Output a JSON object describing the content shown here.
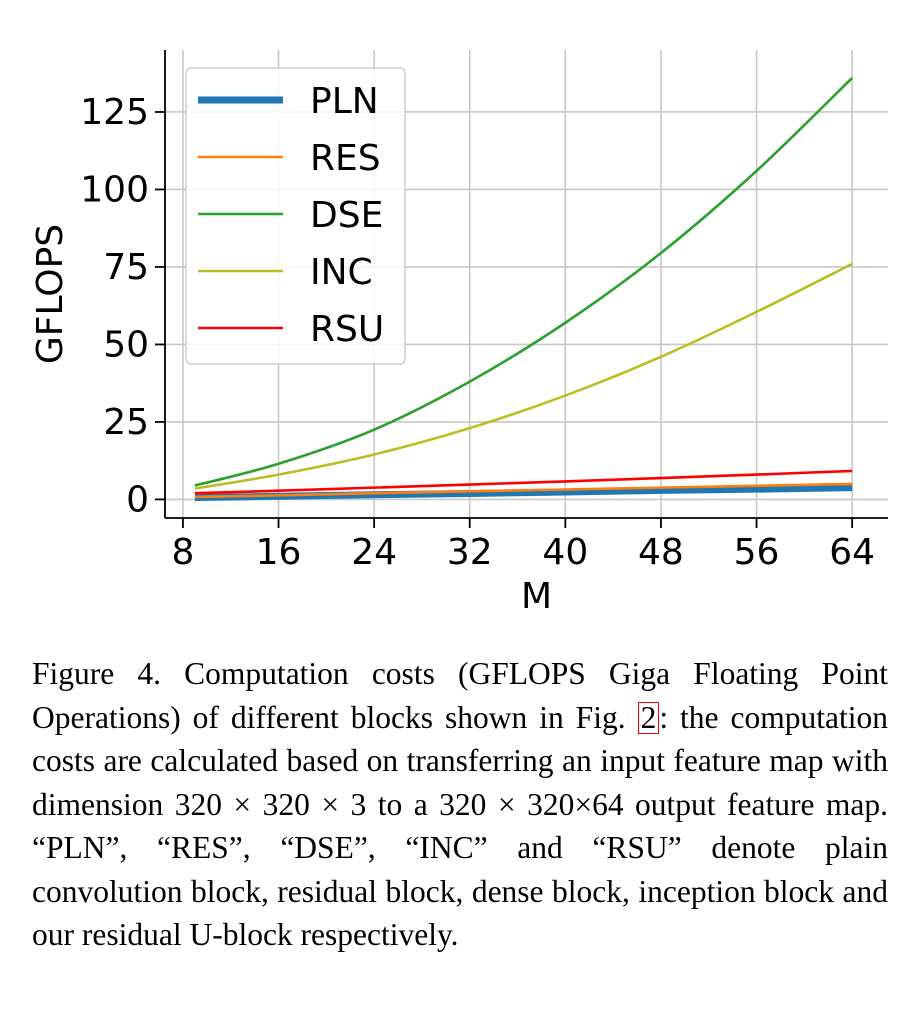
{
  "chart_data": {
    "type": "line",
    "title": "",
    "xlabel": "M",
    "ylabel": "GFLOPS",
    "xlim": [
      6.5,
      67
    ],
    "ylim": [
      -6,
      145
    ],
    "xticks": [
      8,
      16,
      24,
      32,
      40,
      48,
      56,
      64
    ],
    "yticks": [
      0,
      25,
      50,
      75,
      100,
      125
    ],
    "xtick_labels": [
      "8",
      "16",
      "24",
      "32",
      "40",
      "48",
      "56",
      "64"
    ],
    "ytick_labels": [
      "0",
      "25",
      "50",
      "75",
      "100",
      "125"
    ],
    "grid": true,
    "legend_position": "top-left",
    "x": [
      9,
      16,
      24,
      32,
      40,
      48,
      56,
      64
    ],
    "series": [
      {
        "name": "PLN",
        "color": "#1f77b4",
        "values": [
          0.6,
          1.0,
          1.5,
          1.9,
          2.4,
          2.9,
          3.3,
          3.8
        ]
      },
      {
        "name": "RES",
        "color": "#ff7f0e",
        "values": [
          0.8,
          1.3,
          2.0,
          2.6,
          3.2,
          3.8,
          4.4,
          5.0
        ]
      },
      {
        "name": "DSE",
        "color": "#2ca02c",
        "values": [
          4.5,
          11.5,
          22.5,
          38.0,
          57.0,
          79.5,
          106.0,
          136.0
        ]
      },
      {
        "name": "INC",
        "color": "#bcbd22",
        "values": [
          3.5,
          8.0,
          14.5,
          23.0,
          33.5,
          46.0,
          60.5,
          76.0
        ]
      },
      {
        "name": "RSU",
        "color": "#ff0000",
        "values": [
          2.0,
          2.8,
          3.8,
          4.8,
          5.8,
          6.9,
          8.0,
          9.2
        ]
      }
    ]
  },
  "caption": {
    "part1": "Figure 4. Computation costs (GFLOPS Giga Floating Point Operations) of different blocks shown in Fig. ",
    "ref": "2",
    "part2": ": the computation costs are calculated based on transferring an input feature map with dimension 320 × 320 × 3 to a 320 × 320×64 output feature map. “PLN”, “RES”, “DSE”, “INC” and “RSU” denote plain convolution block, residual block, dense block, inception block and our residual U-block respectively."
  }
}
